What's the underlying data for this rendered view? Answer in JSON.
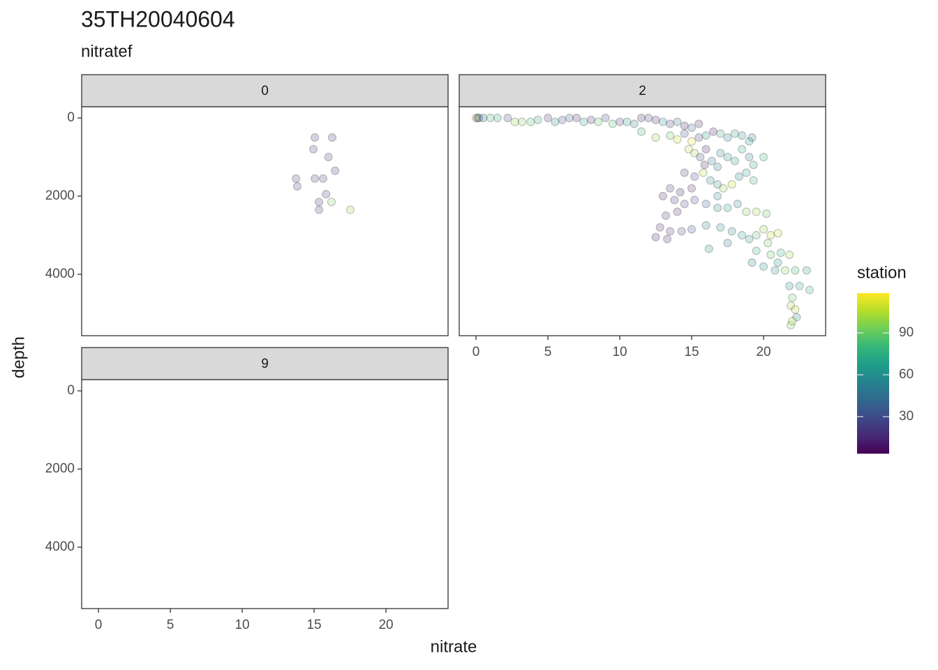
{
  "chart_data": {
    "type": "scatter",
    "title": "35TH20040604",
    "subtitle": "nitratef",
    "xlabel": "nitrate",
    "ylabel": "depth",
    "xlim": [
      -1.17,
      24.32
    ],
    "ylim": [
      -286,
      5571
    ],
    "y_reversed": true,
    "xticks": [
      0,
      5,
      10,
      15,
      20
    ],
    "yticks": [
      0,
      2000,
      4000
    ],
    "palette": "viridis",
    "colorbar": {
      "title": "station",
      "lim": [
        3.5,
        118.5
      ],
      "ticks": [
        30,
        60,
        90
      ]
    },
    "facets": [
      {
        "label": "0",
        "x": [
          15.05,
          16.26,
          14.95,
          16.0,
          16.46,
          13.74,
          15.05,
          15.63,
          13.83,
          15.83,
          16.21,
          15.34,
          15.34,
          17.52
        ],
        "y": [
          500,
          500,
          800,
          1000,
          1350,
          1550,
          1550,
          1550,
          1750,
          1950,
          2150,
          2150,
          2350,
          2350
        ],
        "station": [
          20,
          20,
          20,
          20,
          20,
          20,
          20,
          20,
          20,
          20,
          95,
          20,
          20,
          100
        ]
      },
      {
        "label": "2",
        "x": [
          0,
          0.1,
          0.2,
          0.5,
          1,
          1.5,
          2.2,
          2.7,
          3.2,
          3.8,
          4.3,
          5.0,
          5.5,
          6.0,
          6.5,
          7.0,
          7.5,
          8.0,
          8.5,
          9.0,
          9.5,
          10.0,
          10.5,
          11.0,
          11.5,
          12.0,
          12.5,
          13.0,
          13.5,
          14.0,
          14.5,
          15.0,
          15.5,
          11.5,
          12.5,
          13.5,
          14,
          14.5,
          15,
          15.5,
          16,
          16.5,
          17,
          17.5,
          18,
          18.5,
          19,
          19.2,
          14.8,
          15.2,
          15.6,
          16,
          16.4,
          17,
          17.5,
          18,
          18.5,
          19,
          19.3,
          20,
          15.9,
          16.8,
          14.5,
          15.2,
          15.8,
          16.3,
          16.8,
          17.2,
          17.8,
          18.3,
          18.8,
          19.3,
          15.0,
          14.2,
          13.5,
          16.8,
          13.0,
          13.8,
          14.5,
          15.2,
          16,
          16.8,
          17.5,
          18.2,
          18.8,
          19.5,
          20.2,
          14.0,
          13.2,
          12.8,
          13.5,
          14.3,
          15.0,
          16.0,
          17,
          17.8,
          18.5,
          19.5,
          20,
          20.5,
          21,
          12.5,
          13.3,
          17.5,
          19,
          20.3,
          16.2,
          19.5,
          20.5,
          21.2,
          21.8,
          19.2,
          20.0,
          21.0,
          21.5,
          22.2,
          23,
          20.8,
          21.8,
          22.5,
          23.2,
          22.0,
          21.9,
          22.2,
          22.3,
          21.9,
          22
        ],
        "y": [
          0,
          0,
          0,
          0,
          0,
          0,
          0,
          100,
          100,
          100,
          50,
          0,
          100,
          50,
          0,
          0,
          100,
          50,
          100,
          0,
          150,
          100,
          100,
          150,
          0,
          0,
          50,
          100,
          150,
          100,
          200,
          250,
          150,
          350,
          500,
          450,
          550,
          400,
          600,
          500,
          450,
          350,
          400,
          500,
          400,
          450,
          600,
          500,
          800,
          900,
          1000,
          800,
          1100,
          900,
          1000,
          1100,
          800,
          1000,
          1200,
          1000,
          1200,
          1250,
          1400,
          1500,
          1400,
          1600,
          1700,
          1800,
          1700,
          1500,
          1400,
          1600,
          1800,
          1900,
          1800,
          2000,
          2000,
          2100,
          2200,
          2100,
          2200,
          2300,
          2300,
          2200,
          2400,
          2400,
          2450,
          2400,
          2500,
          2800,
          2900,
          2900,
          2850,
          2750,
          2800,
          2900,
          3000,
          3000,
          2850,
          3000,
          2950,
          3050,
          3100,
          3200,
          3100,
          3200,
          3350,
          3400,
          3500,
          3450,
          3500,
          3700,
          3800,
          3700,
          3900,
          3900,
          3900,
          3900,
          4300,
          4300,
          4400,
          4600,
          4800,
          4900,
          5100,
          5300,
          5200
        ],
        "station": [
          110,
          5,
          60,
          40,
          80,
          70,
          30,
          100,
          95,
          85,
          70,
          20,
          60,
          25,
          40,
          15,
          70,
          20,
          90,
          30,
          85,
          20,
          65,
          50,
          10,
          25,
          15,
          60,
          20,
          45,
          10,
          40,
          15,
          80,
          100,
          90,
          110,
          30,
          115,
          20,
          60,
          10,
          75,
          50,
          70,
          60,
          65,
          55,
          105,
          100,
          25,
          10,
          50,
          55,
          60,
          65,
          70,
          50,
          75,
          80,
          15,
          45,
          20,
          30,
          105,
          60,
          65,
          100,
          110,
          55,
          70,
          80,
          15,
          10,
          20,
          60,
          15,
          20,
          25,
          30,
          40,
          55,
          65,
          60,
          95,
          100,
          90,
          15,
          20,
          15,
          20,
          25,
          30,
          50,
          60,
          55,
          70,
          85,
          100,
          105,
          110,
          10,
          15,
          50,
          60,
          95,
          60,
          75,
          90,
          80,
          100,
          55,
          60,
          65,
          95,
          80,
          70,
          60,
          60,
          70,
          80,
          90,
          100,
          110,
          60,
          95,
          105
        ]
      },
      {
        "label": "9",
        "x": [],
        "y": [],
        "station": []
      }
    ]
  }
}
